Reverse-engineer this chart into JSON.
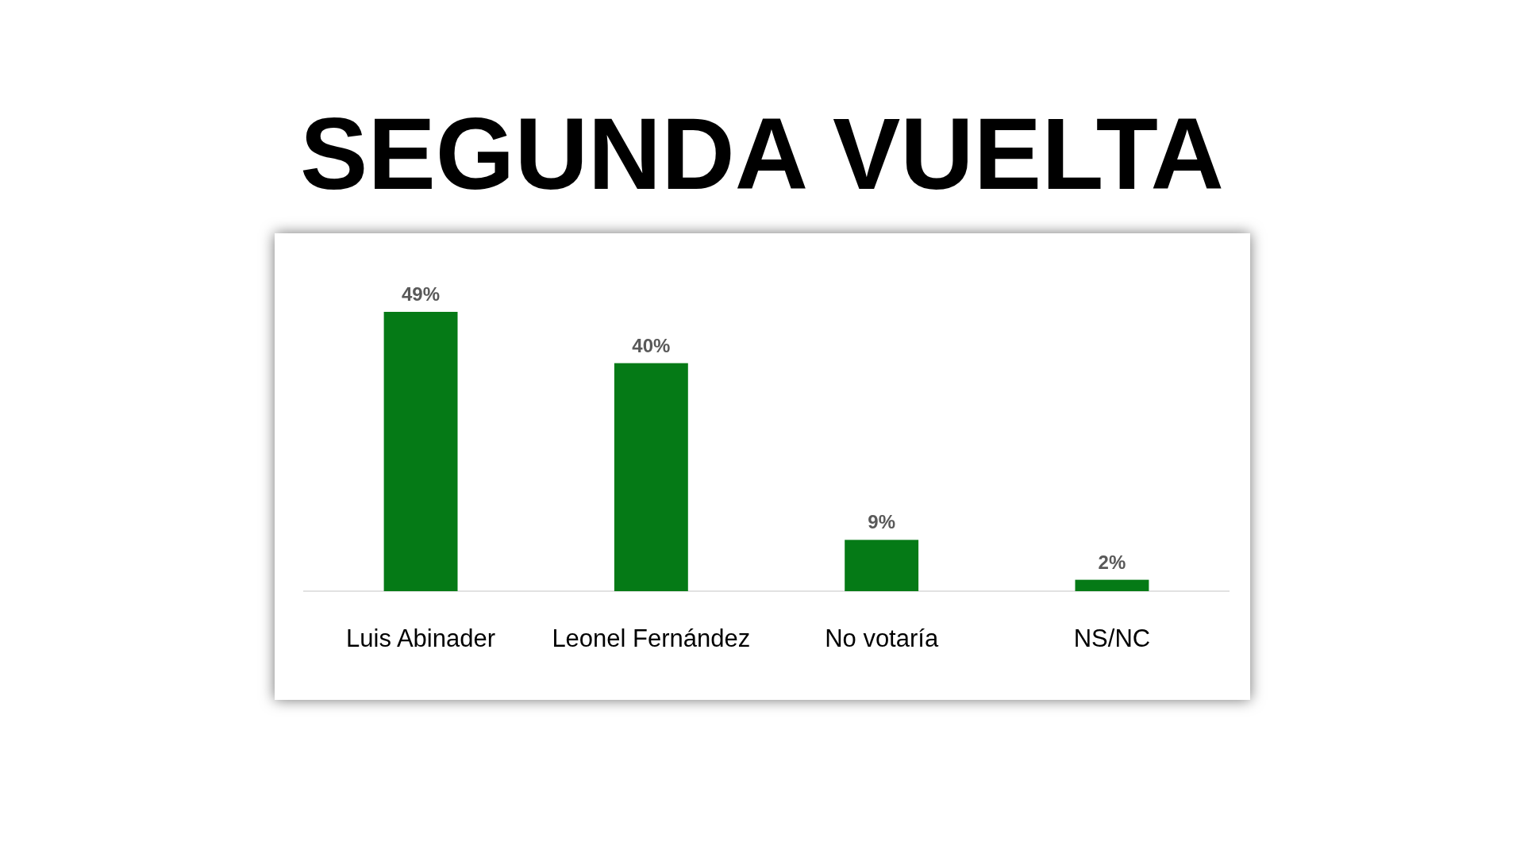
{
  "chart_data": {
    "type": "bar",
    "title": "SEGUNDA VUELTA",
    "categories": [
      "Luis Abinader",
      "Leonel Fernández",
      "No votaría",
      "NS/NC"
    ],
    "values": [
      49,
      40,
      9,
      2
    ],
    "value_labels": [
      "49%",
      "40%",
      "9%",
      "2%"
    ],
    "color": "#057a16"
  }
}
